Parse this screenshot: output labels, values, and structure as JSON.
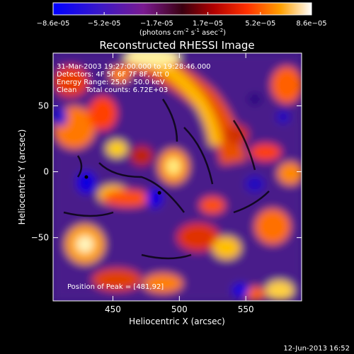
{
  "colorbar": {
    "tick_labels": [
      "-8.6e-05",
      "-5.2e-05",
      "-1.7e-05",
      "1.7e-05",
      "5.2e-05",
      "8.6e-05"
    ],
    "range": [
      -8.6e-05,
      8.6e-05
    ],
    "units_text": "(photons cm",
    "units_exp1": "-2",
    "units_mid": " s",
    "units_exp2": "-1",
    "units_tail": " asec",
    "units_exp3": "-2",
    "units_close": ")"
  },
  "chart_data": {
    "type": "heatmap",
    "title": "Reconstructed RHESSI Image",
    "xlabel": "Heliocentric X (arcsec)",
    "ylabel": "Heliocentric Y (arcsec)",
    "xlim": [
      405,
      592
    ],
    "ylim": [
      -98,
      90
    ],
    "x_ticks": [
      450,
      500,
      550
    ],
    "x_tick_labels": [
      "450",
      "500",
      "550"
    ],
    "y_ticks": [
      50,
      0,
      -50
    ],
    "y_tick_labels": [
      "50",
      "0",
      "−50"
    ],
    "annotations": [
      "31-Mar-2003 19:27:00.000 to 19:28:46.000",
      "Detectors: 4F 5F 6F 7F 8F, Att 0",
      "Energy Range: 25.0 - 50.0 keV",
      "Clean    Total counts: 6.72E+03"
    ],
    "peak_text": "Position of Peak = [481,92]",
    "peak_position": [
      481,
      92
    ],
    "markers": [
      [
        430,
        -4
      ],
      [
        485,
        -16
      ]
    ],
    "colors": {
      "min": "#0000ff",
      "low": "#5a20b0",
      "mid_low": "#800080",
      "zero": "#000000",
      "mid": "#e02000",
      "high": "#ffa000",
      "max": "#ffffff"
    }
  },
  "footer": {
    "date": "12-Jun-2013 16:52"
  }
}
